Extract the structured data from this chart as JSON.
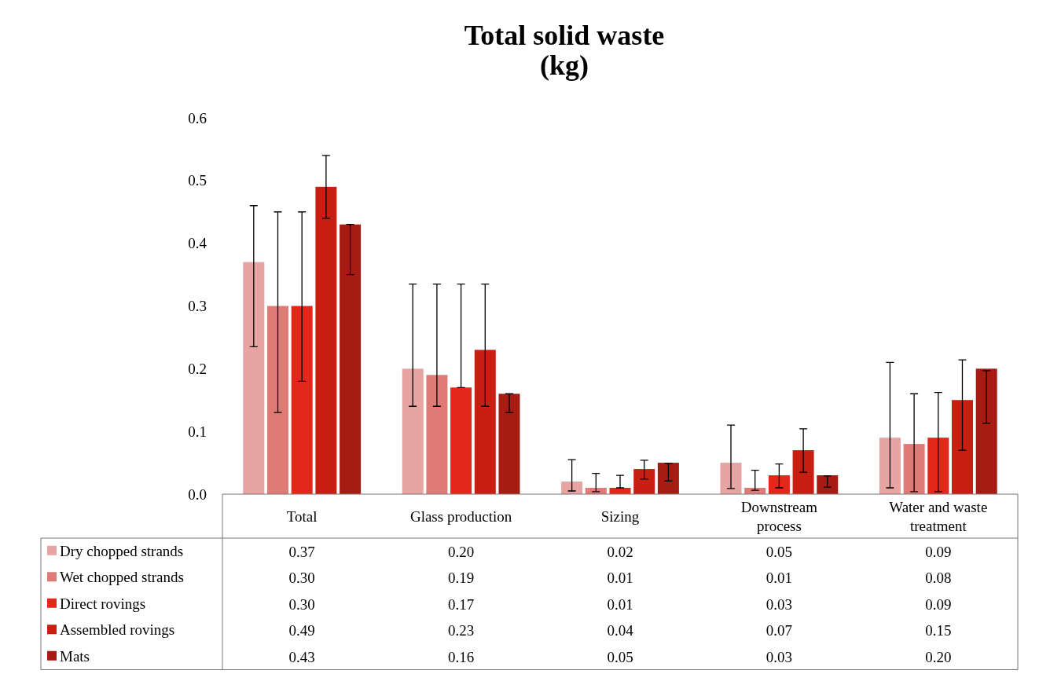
{
  "chart_data": {
    "type": "bar",
    "title": "Total solid waste\n(kg)",
    "categories": [
      "Total",
      "Glass production",
      "Sizing",
      "Downstream\nprocess",
      "Water and waste\ntreatment"
    ],
    "ylim": [
      0,
      0.6
    ],
    "yticks": [
      {
        "value": 0,
        "label": "0.0"
      },
      0.1,
      0.2,
      0.3,
      0.4,
      0.5,
      0.6
    ],
    "grid": false,
    "legend": "bottom",
    "series": [
      {
        "name": "Dry chopped strands",
        "color": "#e8a3a3",
        "values": [
          0.37,
          0.2,
          0.02,
          0.05,
          0.09
        ],
        "value_labels": [
          "0.37",
          "0.20",
          "0.02",
          "0.05",
          "0.09"
        ],
        "errors": [
          [
            0.235,
            0.46
          ],
          [
            0.14,
            0.335
          ],
          [
            0.005,
            0.055
          ],
          [
            0.009,
            0.11
          ],
          [
            0.01,
            0.21
          ]
        ]
      },
      {
        "name": "Wet chopped strands",
        "color": "#e07a76",
        "values": [
          0.3,
          0.19,
          0.01,
          0.01,
          0.08
        ],
        "value_labels": [
          "0.30",
          "0.19",
          "0.01",
          "0.01",
          "0.08"
        ],
        "errors": [
          [
            0.13,
            0.45
          ],
          [
            0.14,
            0.335
          ],
          [
            0.004,
            0.033
          ],
          [
            0.006,
            0.038
          ],
          [
            0.004,
            0.16
          ]
        ]
      },
      {
        "name": "Direct rovings",
        "color": "#e3281a",
        "values": [
          0.3,
          0.17,
          0.01,
          0.03,
          0.09
        ],
        "value_labels": [
          "0.30",
          "0.17",
          "0.01",
          "0.03",
          "0.09"
        ],
        "errors": [
          [
            0.18,
            0.45
          ],
          [
            0.17,
            0.335
          ],
          [
            0.01,
            0.03
          ],
          [
            0.01,
            0.048
          ],
          [
            0.004,
            0.162
          ]
        ]
      },
      {
        "name": "Assembled rovings",
        "color": "#c91e12",
        "values": [
          0.49,
          0.23,
          0.04,
          0.07,
          0.15
        ],
        "value_labels": [
          "0.49",
          "0.23",
          "0.04",
          "0.07",
          "0.15"
        ],
        "errors": [
          [
            0.44,
            0.54
          ],
          [
            0.14,
            0.335
          ],
          [
            0.024,
            0.054
          ],
          [
            0.035,
            0.104
          ],
          [
            0.07,
            0.214
          ]
        ]
      },
      {
        "name": "Mats",
        "color": "#a61c12",
        "values": [
          0.43,
          0.16,
          0.05,
          0.03,
          0.2
        ],
        "value_labels": [
          "0.43",
          "0.16",
          "0.05",
          "0.03",
          "0.20"
        ],
        "errors": [
          [
            0.35,
            0.43
          ],
          [
            0.13,
            0.16
          ],
          [
            0.021,
            0.049
          ],
          [
            0.011,
            0.029
          ],
          [
            0.113,
            0.197
          ]
        ]
      }
    ]
  }
}
